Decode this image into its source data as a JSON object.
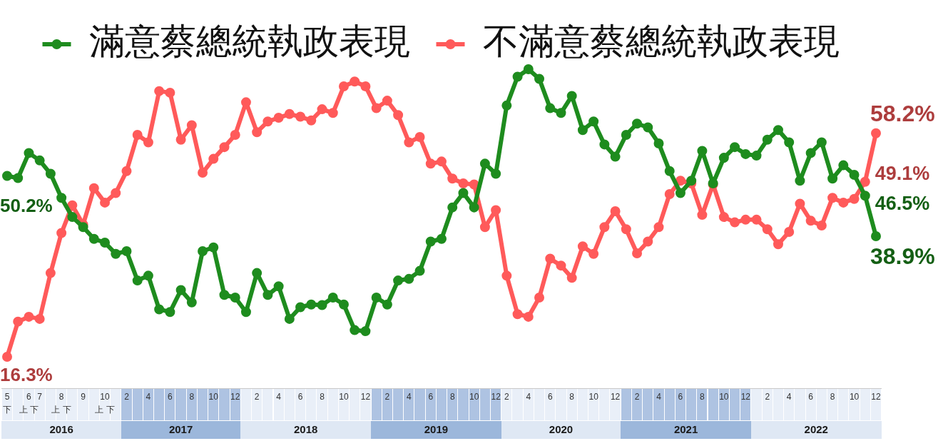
{
  "chart_data": {
    "type": "line",
    "categories": [
      "5\n下",
      null,
      "6\n上 下",
      "7",
      null,
      "8\n上 下",
      null,
      "9",
      null,
      "10\n上 下",
      null,
      "2",
      null,
      "4",
      null,
      "6",
      null,
      "8",
      null,
      "10",
      null,
      "12",
      null,
      "2",
      null,
      "4",
      null,
      "6",
      null,
      "8",
      null,
      "10",
      null,
      "12",
      null,
      "2",
      null,
      "4",
      null,
      "6",
      null,
      "8",
      null,
      "10",
      null,
      "12",
      "2",
      null,
      "4",
      null,
      "6",
      null,
      "8",
      null,
      "10",
      null,
      "12",
      null,
      "2",
      null,
      "4",
      null,
      "6",
      null,
      "8",
      null,
      "10",
      null,
      "12",
      null,
      "2",
      null,
      "4",
      null,
      "6",
      null,
      "8",
      null,
      "10",
      null,
      "12"
    ],
    "series": [
      {
        "name": "滿意蔡總統執政表現",
        "color": "#1e8c1e",
        "values": [
          50.2,
          49.8,
          54.5,
          53.1,
          50.6,
          46.1,
          42.5,
          40.6,
          38.4,
          37.7,
          35.6,
          36.1,
          30.6,
          31.5,
          25.2,
          24.7,
          28.8,
          26.5,
          36.1,
          36.8,
          27.9,
          27.4,
          24.7,
          32.0,
          27.9,
          29.5,
          23.4,
          25.6,
          26.1,
          26.0,
          27.4,
          26.1,
          21.3,
          21.1,
          27.4,
          26.1,
          30.6,
          30.9,
          32.4,
          37.9,
          38.4,
          44.3,
          47.0,
          44.3,
          52.5,
          50.6,
          63.4,
          68.8,
          70.2,
          68.4,
          62.9,
          62.0,
          65.2,
          58.8,
          60.4,
          56.1,
          53.8,
          57.9,
          60.0,
          59.3,
          56.3,
          51.1,
          47.0,
          49.3,
          54.9,
          48.8,
          53.6,
          55.6,
          54.3,
          54.0,
          57.0,
          58.8,
          56.5,
          49.3,
          54.5,
          56.5,
          49.7,
          52.2,
          50.4,
          46.5,
          38.9
        ],
        "value_labels": [
          "50.2%",
          null,
          null,
          null,
          null,
          null,
          null,
          null,
          null,
          null,
          null,
          null,
          null,
          null,
          null,
          null,
          null,
          null,
          null,
          null,
          null,
          null,
          null,
          null,
          null,
          null,
          null,
          null,
          null,
          null,
          null,
          null,
          null,
          null,
          null,
          null,
          null,
          null,
          null,
          null,
          null,
          null,
          null,
          null,
          null,
          null,
          null,
          null,
          null,
          null,
          null,
          null,
          null,
          null,
          null,
          null,
          null,
          null,
          null,
          null,
          null,
          null,
          null,
          null,
          null,
          null,
          null,
          null,
          null,
          null,
          null,
          null,
          null,
          null,
          null,
          null,
          null,
          null,
          null,
          "46.5%",
          "38.9%"
        ]
      },
      {
        "name": "不滿意蔡總統執政表現",
        "color": "#ff5a5a",
        "values": [
          16.3,
          22.9,
          23.8,
          23.4,
          32.0,
          39.5,
          44.7,
          41.1,
          47.9,
          45.2,
          47.0,
          51.1,
          57.9,
          56.5,
          66.1,
          65.8,
          57.0,
          59.7,
          50.8,
          53.4,
          55.6,
          57.9,
          64.0,
          58.4,
          60.4,
          61.1,
          61.8,
          61.3,
          60.6,
          62.7,
          62.0,
          67.0,
          67.9,
          67.0,
          62.9,
          64.3,
          61.6,
          56.5,
          57.5,
          52.5,
          52.9,
          49.7,
          48.8,
          48.6,
          40.6,
          43.8,
          31.5,
          24.3,
          23.8,
          27.4,
          34.7,
          33.4,
          31.1,
          37.0,
          35.6,
          40.6,
          43.6,
          40.2,
          35.7,
          37.9,
          40.6,
          46.8,
          49.3,
          48.8,
          42.9,
          48.6,
          42.5,
          41.5,
          42.0,
          42.0,
          40.2,
          37.4,
          39.7,
          45.0,
          41.8,
          40.9,
          46.1,
          45.2,
          45.9,
          49.1,
          58.2
        ],
        "value_labels": [
          "16.3%",
          null,
          null,
          null,
          null,
          null,
          null,
          null,
          null,
          null,
          null,
          null,
          null,
          null,
          null,
          null,
          null,
          null,
          null,
          null,
          null,
          null,
          null,
          null,
          null,
          null,
          null,
          null,
          null,
          null,
          null,
          null,
          null,
          null,
          null,
          null,
          null,
          null,
          null,
          null,
          null,
          null,
          null,
          null,
          null,
          null,
          null,
          null,
          null,
          null,
          null,
          null,
          null,
          null,
          null,
          null,
          null,
          null,
          null,
          null,
          null,
          null,
          null,
          null,
          null,
          null,
          null,
          null,
          null,
          null,
          null,
          null,
          null,
          null,
          null,
          null,
          null,
          null,
          null,
          "49.1%",
          "58.2%"
        ]
      }
    ],
    "tick_labels": "x",
    "legend": "top",
    "marker": "circle",
    "line_style": "solid",
    "annotations": [
      "2016",
      "2017",
      "2018",
      "2019",
      "2020",
      "2021",
      "2022"
    ]
  }
}
